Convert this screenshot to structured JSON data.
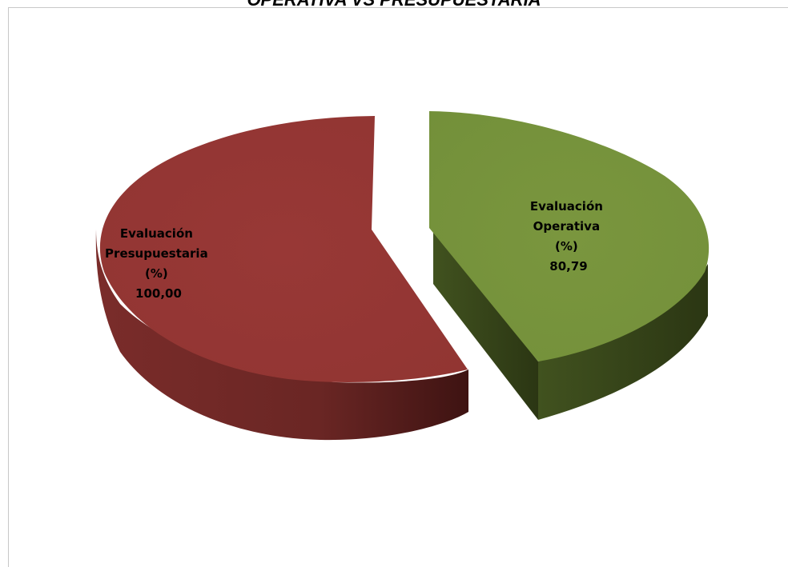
{
  "chart_data": {
    "type": "pie",
    "title": "OPERATIVA VS PRESUPUESTARIA",
    "style": "3d-exploded",
    "slices": [
      {
        "label_lines": [
          "Evaluación",
          "Presupuestaria",
          "(%)"
        ],
        "value": 100.0,
        "value_text": "100,00",
        "color": "#953735",
        "side_color": "#5e2220"
      },
      {
        "label_lines": [
          "Evaluación",
          "Operativa",
          "(%)"
        ],
        "value": 80.79,
        "value_text": "80,79",
        "color": "#77933c",
        "side_color": "#3b4a1e"
      }
    ],
    "legend": "none"
  }
}
